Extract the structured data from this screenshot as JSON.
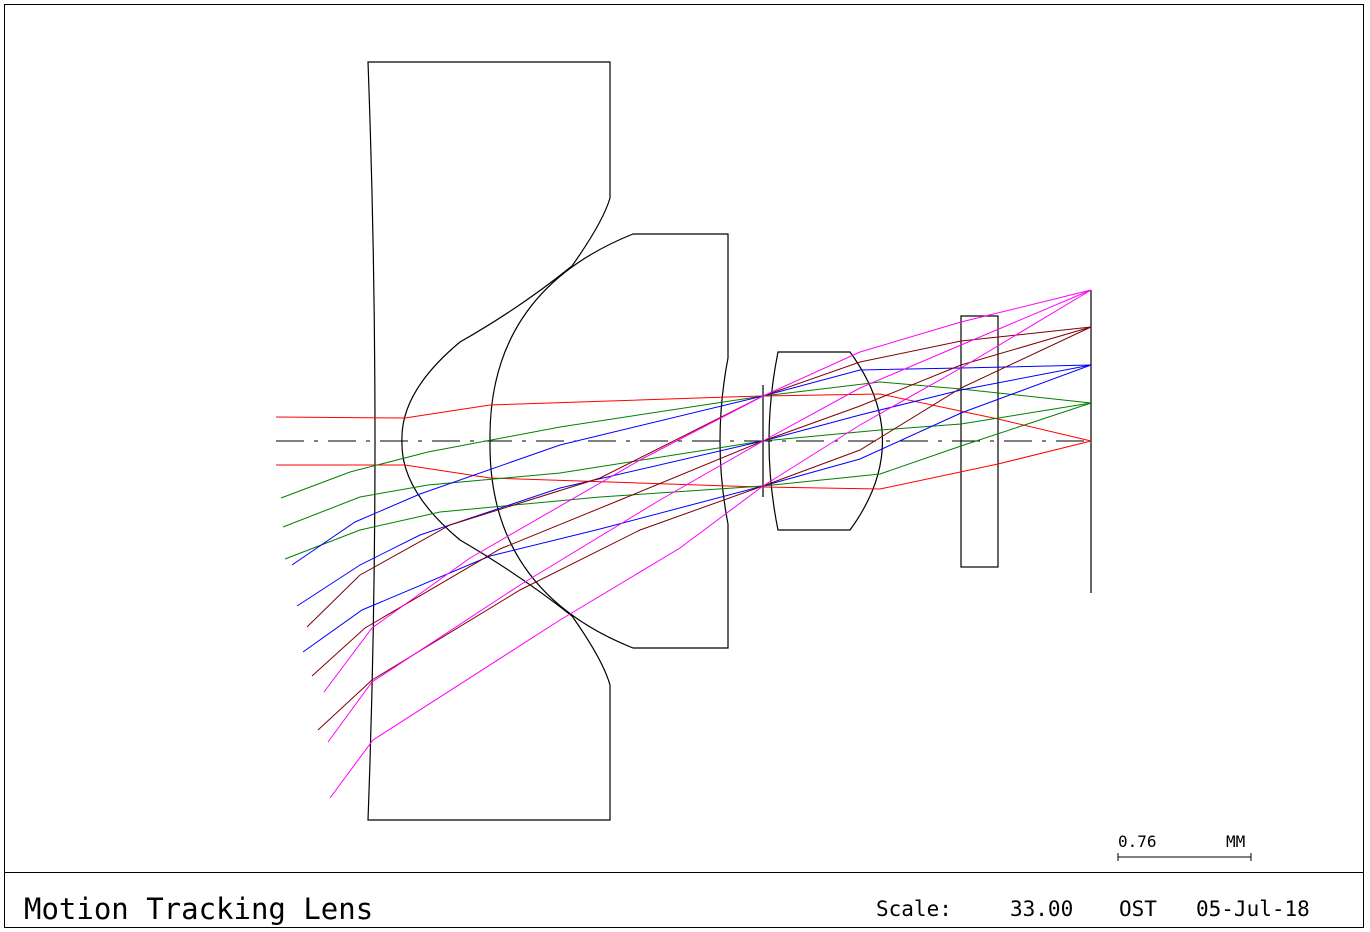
{
  "title": "Motion Tracking Lens",
  "scale_label": "Scale:",
  "scale_value": "33.00",
  "author": "OST",
  "date": "05-Jul-18",
  "scale_bar": {
    "value": "0.76",
    "unit": "MM"
  },
  "colors": {
    "frame": "#000000",
    "field_0": "#ff0000",
    "field_1": "#008000",
    "field_2": "#0000ff",
    "field_3": "#800000",
    "field_4": "#ff00ff"
  }
}
